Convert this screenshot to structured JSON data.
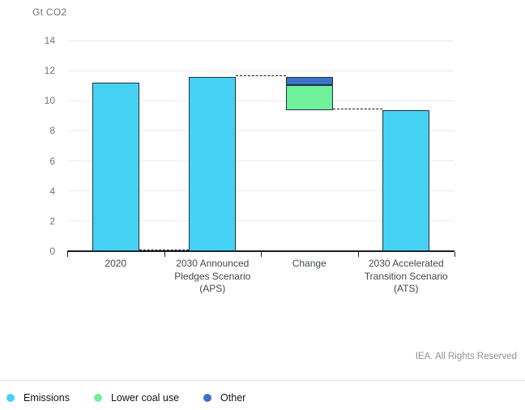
{
  "unit_label": "Gt CO2",
  "attribution": "IEA. All Rights Reserved",
  "legend": [
    {
      "label": "Emissions",
      "color": "#45d2f2"
    },
    {
      "label": "Lower coal use",
      "color": "#6ff09a"
    },
    {
      "label": "Other",
      "color": "#3a73c8"
    }
  ],
  "y_axis": {
    "min": 0,
    "max": 14,
    "step": 2,
    "tick_labels": [
      "0",
      "2",
      "4",
      "6",
      "8",
      "10",
      "12",
      "14"
    ]
  },
  "x_axis": {
    "labels": [
      "2020",
      "2030 Announced\nPledges Scenario\n(APS)",
      "Change",
      "2030 Accelerated\nTransition Scenario\n(ATS)"
    ]
  },
  "colors": {
    "bar_border": "#1e2f44",
    "gridline": "#e9eaeb",
    "axis_line": "#191e23",
    "connector": "#14181c"
  },
  "chart_data": {
    "type": "bar",
    "subtype": "waterfall",
    "title": "",
    "ylabel": "Gt CO2",
    "ylim": [
      0,
      14
    ],
    "ytick_step": 2,
    "grid": true,
    "legend_position": "bottom",
    "categories": [
      "2020",
      "2030 Announced Pledges Scenario (APS)",
      "Change",
      "2030 Accelerated Transition Scenario (ATS)"
    ],
    "bars": [
      {
        "category": "2020",
        "segments": [
          {
            "series": "Emissions",
            "from": 0,
            "to": 11.2
          }
        ]
      },
      {
        "category": "2030 Announced Pledges Scenario (APS)",
        "segments": [
          {
            "series": "Emissions",
            "from": 0,
            "to": 11.6
          }
        ]
      },
      {
        "category": "Change",
        "segments": [
          {
            "series": "Lower coal use",
            "from": 9.35,
            "to": 11.05
          },
          {
            "series": "Other",
            "from": 11.05,
            "to": 11.6
          }
        ]
      },
      {
        "category": "2030 Accelerated Transition Scenario (ATS)",
        "segments": [
          {
            "series": "Emissions",
            "from": 0,
            "to": 9.35
          }
        ]
      }
    ],
    "connectors": [
      {
        "value": 0,
        "from_bar": 0,
        "to_bar": 1
      },
      {
        "value": 11.6,
        "from_bar": 1,
        "to_bar": 2
      },
      {
        "value": 9.35,
        "from_bar": 2,
        "to_bar": 3
      }
    ]
  }
}
